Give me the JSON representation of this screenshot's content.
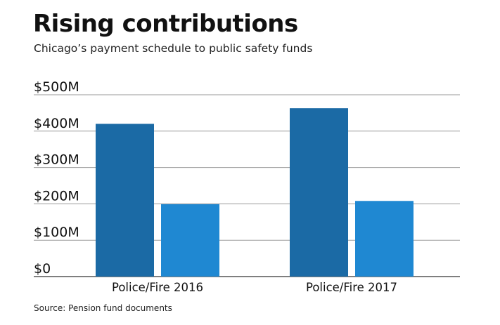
{
  "title": "Rising contributions",
  "subtitle": "Chicago’s payment schedule to public safety funds",
  "source": "Source: Pension fund documents",
  "chart_data": {
    "type": "bar",
    "categories": [
      "Police/Fire 2016",
      "Police/Fire 2017"
    ],
    "series": [
      {
        "values": [
          420,
          463
        ],
        "color": "#1b6aa5"
      },
      {
        "values": [
          199,
          208
        ],
        "color": "#1f88d2"
      }
    ],
    "yticks": [
      "$0",
      "$100M",
      "$200M",
      "$300M",
      "$400M",
      "$500M"
    ],
    "ylim": [
      0,
      500
    ],
    "grid": true
  }
}
